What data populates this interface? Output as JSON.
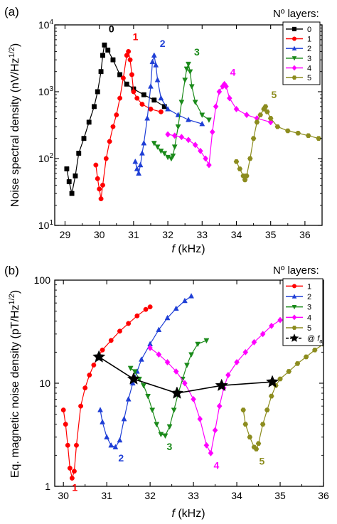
{
  "colors": {
    "black": "#000000",
    "red": "#ff0000",
    "blue": "#1f3fd6",
    "green": "#1a8a1a",
    "magenta": "#ff00ff",
    "olive": "#8c8c1e"
  },
  "chart_data": [
    {
      "type": "scatter",
      "panel_label": "(a)",
      "ylabel": "Noise spectral density (nV/Hz",
      "ylabel_sup": "1/2",
      "ylabel_close": ")",
      "xlabel_italic": "f",
      "xlabel_rest": " (kHz)",
      "yscale": "log",
      "xlim": [
        28.7,
        36.5
      ],
      "ylim": [
        10,
        10000
      ],
      "xticks": [
        "29",
        "30",
        "31",
        "32",
        "33",
        "34",
        "35",
        "36"
      ],
      "yticks": [
        "10",
        "10",
        "10",
        "10"
      ],
      "ytick_exps": [
        "1",
        "2",
        "3",
        "4"
      ],
      "legend_title": "Nº layers:",
      "legend_position": "top-right",
      "series": [
        {
          "name": "0",
          "color": "black",
          "marker": "square",
          "x": [
            29.05,
            29.12,
            29.2,
            29.3,
            29.4,
            29.55,
            29.7,
            29.85,
            29.95,
            30.05,
            30.1,
            30.15,
            30.25,
            30.4,
            30.6,
            30.8,
            31.0,
            31.3,
            31.6,
            31.9
          ],
          "y": [
            70,
            45,
            30,
            55,
            120,
            200,
            350,
            600,
            1000,
            2000,
            3500,
            5000,
            4200,
            3000,
            1800,
            1300,
            1100,
            900,
            750,
            600
          ]
        },
        {
          "name": "1",
          "color": "red",
          "marker": "circle",
          "x": [
            29.9,
            29.95,
            30.0,
            30.05,
            30.1,
            30.2,
            30.3,
            30.4,
            30.5,
            30.6,
            30.7,
            30.8,
            30.85,
            30.9,
            30.95,
            31.0,
            31.1,
            31.25,
            31.5,
            31.8
          ],
          "y": [
            80,
            50,
            35,
            25,
            40,
            100,
            180,
            300,
            450,
            800,
            1600,
            3500,
            4000,
            3000,
            1800,
            1000,
            800,
            650,
            550,
            500
          ]
        },
        {
          "name": "2",
          "color": "blue",
          "marker": "triangle-up",
          "x": [
            31.05,
            31.1,
            31.15,
            31.2,
            31.25,
            31.3,
            31.4,
            31.5,
            31.55,
            31.6,
            31.65,
            31.7,
            31.8,
            32.0,
            32.3,
            32.6,
            33.0
          ],
          "y": [
            90,
            70,
            60,
            80,
            120,
            170,
            400,
            1200,
            2800,
            3500,
            2500,
            1500,
            800,
            550,
            450,
            380,
            330
          ]
        },
        {
          "name": "3",
          "color": "green",
          "marker": "triangle-down",
          "x": [
            31.6,
            31.7,
            31.8,
            31.9,
            32.0,
            32.1,
            32.15,
            32.2,
            32.3,
            32.4,
            32.5,
            32.55,
            32.6,
            32.65,
            32.7,
            32.8,
            33.0,
            33.2
          ],
          "y": [
            170,
            150,
            130,
            120,
            105,
            100,
            110,
            150,
            300,
            700,
            1500,
            2200,
            2600,
            2000,
            1200,
            700,
            450,
            380
          ]
        },
        {
          "name": "4",
          "color": "magenta",
          "marker": "diamond",
          "x": [
            32.0,
            32.2,
            32.4,
            32.6,
            32.8,
            32.95,
            33.1,
            33.2,
            33.3,
            33.4,
            33.5,
            33.6,
            33.65,
            33.7,
            33.8,
            34.0,
            34.3,
            34.6,
            35.0
          ],
          "y": [
            230,
            220,
            210,
            190,
            160,
            130,
            100,
            80,
            250,
            600,
            1000,
            1200,
            1300,
            1200,
            800,
            550,
            450,
            400,
            350
          ]
        },
        {
          "name": "5",
          "color": "olive",
          "marker": "hexagon",
          "x": [
            34.0,
            34.1,
            34.2,
            34.25,
            34.3,
            34.4,
            34.5,
            34.6,
            34.7,
            34.8,
            34.85,
            34.9,
            35.0,
            35.2,
            35.5,
            35.8,
            36.1,
            36.4
          ],
          "y": [
            90,
            70,
            55,
            48,
            55,
            100,
            200,
            350,
            450,
            550,
            600,
            500,
            400,
            300,
            260,
            240,
            220,
            200
          ]
        }
      ],
      "curve_labels": [
        "0",
        "1",
        "2",
        "3",
        "4",
        "5"
      ]
    },
    {
      "type": "scatter",
      "panel_label": "(b)",
      "ylabel": "Eq. magnetic noise density (pT/Hz",
      "ylabel_sup": "1/2",
      "ylabel_close": ")",
      "xlabel_italic": "f",
      "xlabel_rest": " (kHz)",
      "yscale": "log",
      "xlim": [
        29.8,
        36.0
      ],
      "ylim": [
        1,
        100
      ],
      "xticks": [
        "30",
        "31",
        "32",
        "33",
        "34",
        "35",
        "36"
      ],
      "yticks": [
        "1",
        "10",
        "100"
      ],
      "legend_title": "Nº layers:",
      "legend_position": "top-right",
      "series": [
        {
          "name": "1",
          "color": "red",
          "marker": "circle",
          "x": [
            30.0,
            30.05,
            30.1,
            30.15,
            30.2,
            30.25,
            30.3,
            30.4,
            30.5,
            30.6,
            30.7,
            30.8,
            30.9,
            31.1,
            31.3,
            31.5,
            31.7,
            31.9,
            32.0
          ],
          "y": [
            5.5,
            4,
            2.5,
            1.5,
            1.2,
            1.4,
            2.5,
            6,
            9,
            12,
            15,
            18,
            21,
            26,
            32,
            38,
            45,
            52,
            55
          ]
        },
        {
          "name": "2",
          "color": "blue",
          "marker": "triangle-up",
          "x": [
            30.85,
            30.9,
            31.0,
            31.1,
            31.2,
            31.3,
            31.4,
            31.5,
            31.6,
            31.7,
            31.8,
            32.0,
            32.2,
            32.4,
            32.6,
            32.8,
            32.95
          ],
          "y": [
            5.5,
            4.2,
            3.0,
            2.5,
            2.4,
            2.8,
            4.5,
            7,
            10,
            13,
            17,
            24,
            33,
            43,
            53,
            63,
            70
          ]
        },
        {
          "name": "3",
          "color": "green",
          "marker": "triangle-down",
          "x": [
            31.55,
            31.65,
            31.75,
            31.85,
            31.95,
            32.05,
            32.15,
            32.25,
            32.35,
            32.45,
            32.55,
            32.65,
            32.75,
            32.85,
            32.95,
            33.1,
            33.3
          ],
          "y": [
            14,
            13,
            11,
            9.5,
            7.5,
            5.5,
            4,
            3.2,
            3.1,
            3.8,
            5.5,
            8,
            11,
            15,
            19,
            24,
            26
          ]
        },
        {
          "name": "4",
          "color": "magenta",
          "marker": "diamond",
          "x": [
            32.0,
            32.2,
            32.4,
            32.6,
            32.8,
            33.0,
            33.15,
            33.3,
            33.4,
            33.5,
            33.6,
            33.7,
            33.8,
            34.0,
            34.2,
            34.4,
            34.6,
            34.8,
            35.0
          ],
          "y": [
            22,
            19,
            16,
            13,
            10,
            7,
            4.5,
            2.5,
            2.1,
            3.5,
            6,
            9,
            12,
            16,
            20,
            25,
            30,
            36,
            41
          ]
        },
        {
          "name": "5",
          "color": "olive",
          "marker": "hexagon",
          "x": [
            34.15,
            34.2,
            34.3,
            34.4,
            34.45,
            34.5,
            34.6,
            34.7,
            34.8,
            34.9,
            35.0,
            35.2,
            35.4,
            35.6,
            35.8,
            36.0
          ],
          "y": [
            5.5,
            4,
            3,
            2.4,
            2.3,
            2.6,
            4,
            5.5,
            7.5,
            9.5,
            11,
            13,
            15.5,
            18,
            21,
            24
          ]
        },
        {
          "name": "@ fa",
          "color": "black",
          "marker": "star",
          "x": [
            30.82,
            31.62,
            32.62,
            33.65,
            34.82
          ],
          "y": [
            18,
            11,
            8,
            9.5,
            10.3
          ]
        }
      ],
      "curve_labels": [
        "1",
        "2",
        "3",
        "4",
        "5"
      ],
      "legend_extra_prefix": "@ ",
      "legend_extra_italic": "f",
      "legend_extra_sub": "a"
    }
  ]
}
